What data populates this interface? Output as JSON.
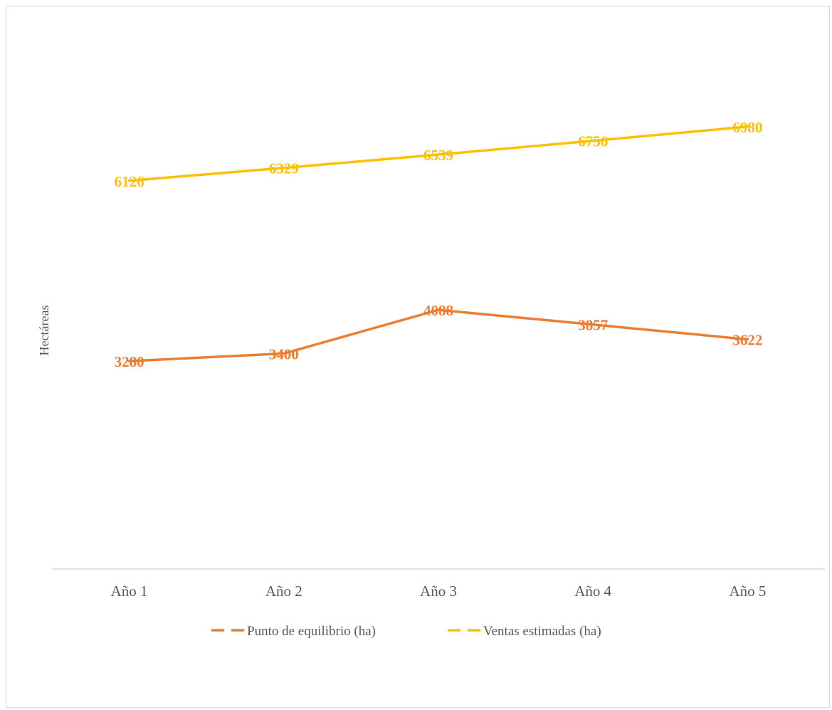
{
  "chart_data": {
    "type": "line",
    "title": "",
    "xlabel": "",
    "ylabel": "Hectáreas",
    "categories": [
      "Año 1",
      "Año 2",
      "Año 3",
      "Año 4",
      "Año 5"
    ],
    "ylim": [
      0,
      8000
    ],
    "grid": false,
    "legend_position": "bottom",
    "series": [
      {
        "name": "Punto de equilibrio (ha)",
        "values": [
          3280,
          3400,
          4088,
          3857,
          3622
        ],
        "color": "#ED7D31"
      },
      {
        "name": "Ventas estimadas (ha)",
        "values": [
          6126,
          6329,
          6539,
          6756,
          6980
        ],
        "color": "#FFC000"
      }
    ],
    "axis_color": "#d9d9d9"
  }
}
